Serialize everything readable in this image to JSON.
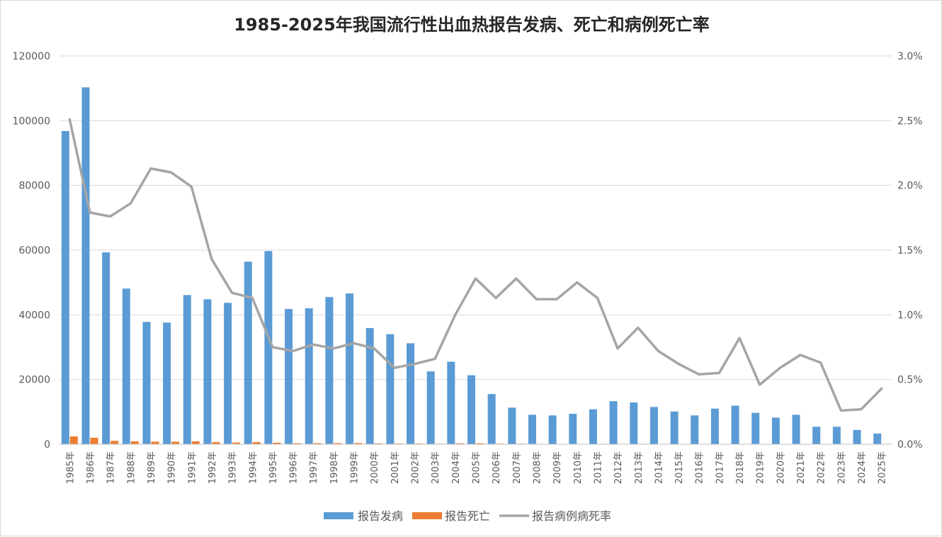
{
  "chart_data": {
    "type": "bar",
    "title": "1985-2025年我国流行性出血热报告发病、死亡和病例死亡率",
    "categories": [
      "1985年",
      "1986年",
      "1987年",
      "1988年",
      "1989年",
      "1990年",
      "1991年",
      "1992年",
      "1993年",
      "1994年",
      "1995年",
      "1996年",
      "1997年",
      "1998年",
      "1999年",
      "2000年",
      "2001年",
      "2002年",
      "2003年",
      "2004年",
      "2005年",
      "2006年",
      "2007年",
      "2008年",
      "2009年",
      "2010年",
      "2011年",
      "2012年",
      "2013年",
      "2014年",
      "2015年",
      "2016年",
      "2017年",
      "2018年",
      "2019年",
      "2020年",
      "2021年",
      "2022年",
      "2023年",
      "2024年",
      "2025年"
    ],
    "left_axis": {
      "min": 0,
      "max": 120000,
      "ticks": [
        "0",
        "20000",
        "40000",
        "60000",
        "80000",
        "100000",
        "120000"
      ]
    },
    "right_axis": {
      "min": 0,
      "max": 3.0,
      "ticks": [
        "0.0%",
        "0.5%",
        "1.0%",
        "1.5%",
        "2.0%",
        "2.5%",
        "3.0%"
      ]
    },
    "grid": true,
    "legend_position": "bottom",
    "series": [
      {
        "name": "报告发病",
        "type": "bar",
        "axis": "left",
        "color": "#5b9bd5",
        "values": [
          96800,
          110300,
          59300,
          48100,
          37800,
          37600,
          46100,
          44800,
          43700,
          56400,
          59700,
          41800,
          42000,
          45500,
          46600,
          35900,
          34000,
          31200,
          22500,
          25500,
          21300,
          15500,
          11300,
          9100,
          8900,
          9400,
          10800,
          13300,
          12900,
          11500,
          10100,
          8900,
          11000,
          11900,
          9700,
          8200,
          9100,
          5400,
          5400,
          4400,
          3300
        ]
      },
      {
        "name": "报告死亡",
        "type": "bar",
        "axis": "left",
        "color": "#ed7d31",
        "values": [
          2400,
          2000,
          1040,
          890,
          800,
          780,
          890,
          640,
          510,
          640,
          450,
          300,
          330,
          340,
          360,
          260,
          200,
          190,
          150,
          260,
          280,
          170,
          150,
          110,
          100,
          120,
          120,
          100,
          120,
          80,
          60,
          50,
          60,
          100,
          50,
          40,
          60,
          30,
          15,
          12,
          15
        ]
      },
      {
        "name": "报告病例病死率",
        "type": "line",
        "axis": "right",
        "color": "#a5a5a5",
        "values": [
          2.51,
          1.79,
          1.76,
          1.86,
          2.13,
          2.1,
          1.99,
          1.43,
          1.17,
          1.13,
          0.75,
          0.72,
          0.77,
          0.74,
          0.78,
          0.74,
          0.59,
          0.62,
          0.66,
          1.0,
          1.28,
          1.13,
          1.28,
          1.12,
          1.12,
          1.25,
          1.13,
          0.74,
          0.9,
          0.72,
          0.62,
          0.54,
          0.55,
          0.82,
          0.46,
          0.59,
          0.69,
          0.63,
          0.26,
          0.27,
          0.43
        ]
      }
    ]
  }
}
